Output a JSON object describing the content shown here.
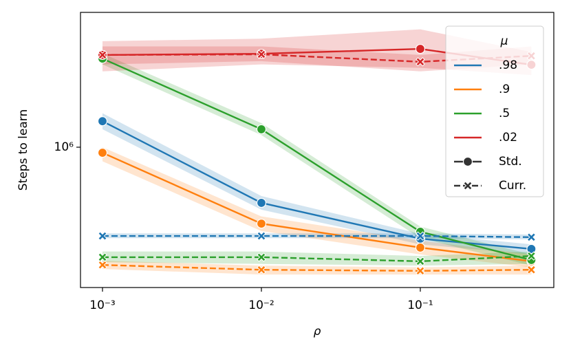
{
  "chart_data": {
    "type": "line",
    "xlabel": "ρ",
    "ylabel": "Steps to learn",
    "x": [
      0.001,
      0.01,
      0.1,
      0.5
    ],
    "xscale": "log",
    "yscale": "log",
    "xlim": [
      0.000727,
      0.692
    ],
    "ylim": [
      198000,
      4740000
    ],
    "xticks": [
      {
        "value": 0.001,
        "label": "10⁻³"
      },
      {
        "value": 0.01,
        "label": "10⁻²"
      },
      {
        "value": 0.1,
        "label": "10⁻¹"
      }
    ],
    "yticks": [
      {
        "value": 1000000,
        "label": "10⁶"
      }
    ],
    "legend_title": "μ",
    "legend_position": "upper right",
    "groups": [
      {
        "name": ".98",
        "color": "#1f77b4"
      },
      {
        "name": ".9",
        "color": "#ff7f0e"
      },
      {
        "name": ".5",
        "color": "#2ca02c"
      },
      {
        "name": ".02",
        "color": "#d62728"
      }
    ],
    "styles": [
      {
        "name": "Std.",
        "marker": "circle",
        "dashed": false
      },
      {
        "name": "Curr.",
        "marker": "x",
        "dashed": true
      }
    ],
    "series": [
      {
        "group": 0,
        "style": 0,
        "values": [
          1350000,
          526000,
          348000,
          309000
        ],
        "lower": [
          1230000,
          486000,
          326000,
          290000
        ],
        "upper": [
          1480000,
          569000,
          368000,
          326000
        ]
      },
      {
        "group": 1,
        "style": 0,
        "values": [
          938000,
          414000,
          314000,
          268000
        ],
        "lower": [
          850000,
          380000,
          290000,
          250000
        ],
        "upper": [
          1000000,
          450000,
          340000,
          290000
        ]
      },
      {
        "group": 2,
        "style": 0,
        "values": [
          2780000,
          1230000,
          377000,
          272000
        ],
        "lower": [
          2600000,
          1150000,
          350000,
          255000
        ],
        "upper": [
          2950000,
          1320000,
          400000,
          290000
        ]
      },
      {
        "group": 3,
        "style": 0,
        "values": [
          2900000,
          2940000,
          3110000,
          2590000
        ],
        "lower": [
          2400000,
          2600000,
          2500000,
          2300000
        ],
        "upper": [
          3400000,
          3500000,
          3900000,
          3000000
        ]
      },
      {
        "group": 0,
        "style": 1,
        "values": [
          359000,
          359000,
          359000,
          354000
        ],
        "lower": [
          350000,
          350000,
          350000,
          345000
        ],
        "upper": [
          370000,
          370000,
          370000,
          365000
        ]
      },
      {
        "group": 1,
        "style": 1,
        "values": [
          257000,
          243000,
          240000,
          243000
        ],
        "lower": [
          245000,
          230000,
          230000,
          230000
        ],
        "upper": [
          270000,
          255000,
          250000,
          255000
        ]
      },
      {
        "group": 2,
        "style": 1,
        "values": [
          281000,
          281000,
          268000,
          285000
        ],
        "lower": [
          265000,
          260000,
          255000,
          260000
        ],
        "upper": [
          300000,
          300000,
          285000,
          300000
        ]
      },
      {
        "group": 3,
        "style": 1,
        "values": [
          2900000,
          2920000,
          2680000,
          2870000
        ],
        "lower": [
          2600000,
          2700000,
          2400000,
          2600000
        ],
        "upper": [
          3200000,
          3200000,
          2900000,
          3200000
        ]
      }
    ]
  }
}
